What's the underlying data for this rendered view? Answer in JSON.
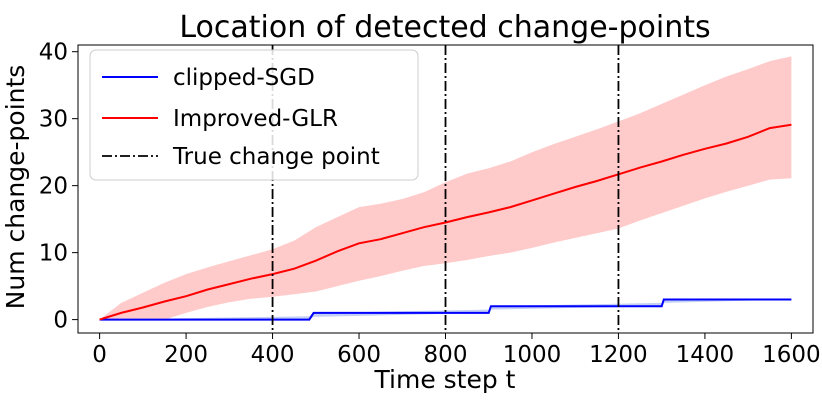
{
  "chart_data": {
    "type": "line",
    "title": "Location of detected change-points",
    "xlabel": "Time step t",
    "ylabel": "Num change-points",
    "xlim": [
      -50,
      1650
    ],
    "ylim": [
      -2,
      41
    ],
    "xticks": [
      0,
      200,
      400,
      600,
      800,
      1000,
      1200,
      1400,
      1600
    ],
    "yticks": [
      0,
      10,
      20,
      30,
      40
    ],
    "grid": false,
    "legend_position": "upper-left",
    "legend": [
      "clipped-SGD",
      "Improved-GLR",
      "True change point"
    ],
    "true_change_points": [
      400,
      800,
      1200
    ],
    "series": [
      {
        "name": "clipped-SGD",
        "color": "#0000ff",
        "band_color": "#aabbee",
        "x": [
          0,
          485,
          495,
          900,
          905,
          1300,
          1305,
          1600
        ],
        "y": [
          0,
          0,
          1,
          1,
          2,
          2,
          3,
          3
        ],
        "lower": [
          0,
          0,
          0.4,
          1,
          1.5,
          2,
          2.5,
          3
        ],
        "upper": [
          0,
          0.5,
          1,
          1.5,
          2,
          2.5,
          3,
          3
        ]
      },
      {
        "name": "Improved-GLR",
        "color": "#ff0000",
        "band_color": "#ffc4c4",
        "x": [
          0,
          50,
          100,
          150,
          200,
          250,
          300,
          350,
          400,
          450,
          500,
          550,
          600,
          650,
          700,
          750,
          800,
          850,
          900,
          950,
          1000,
          1050,
          1100,
          1150,
          1200,
          1250,
          1300,
          1350,
          1400,
          1450,
          1500,
          1550,
          1600
        ],
        "y": [
          0,
          1,
          1.8,
          2.7,
          3.5,
          4.5,
          5.3,
          6.1,
          6.8,
          7.6,
          8.8,
          10.2,
          11.4,
          12.0,
          12.9,
          13.8,
          14.5,
          15.3,
          16.0,
          16.8,
          17.8,
          18.8,
          19.8,
          20.7,
          21.7,
          22.7,
          23.6,
          24.6,
          25.5,
          26.3,
          27.3,
          28.6,
          29.1
        ],
        "lower": [
          0,
          0,
          0,
          0,
          1.0,
          1.9,
          2.6,
          3.1,
          3.4,
          3.8,
          4.2,
          5.0,
          5.8,
          6.5,
          7.3,
          8.0,
          8.4,
          8.9,
          9.5,
          10.0,
          10.7,
          11.5,
          12.2,
          12.9,
          13.6,
          14.8,
          15.9,
          17.0,
          18.1,
          19.1,
          20.0,
          20.9,
          21.1
        ],
        "upper": [
          0,
          2.5,
          4.0,
          5.5,
          6.8,
          7.8,
          8.7,
          9.6,
          10.5,
          11.8,
          13.8,
          15.3,
          16.8,
          17.3,
          18.0,
          19.0,
          20.5,
          21.8,
          22.6,
          23.6,
          25.0,
          26.2,
          27.3,
          28.4,
          29.6,
          30.8,
          32.2,
          33.6,
          35.0,
          36.3,
          37.4,
          38.6,
          39.3
        ]
      }
    ]
  }
}
